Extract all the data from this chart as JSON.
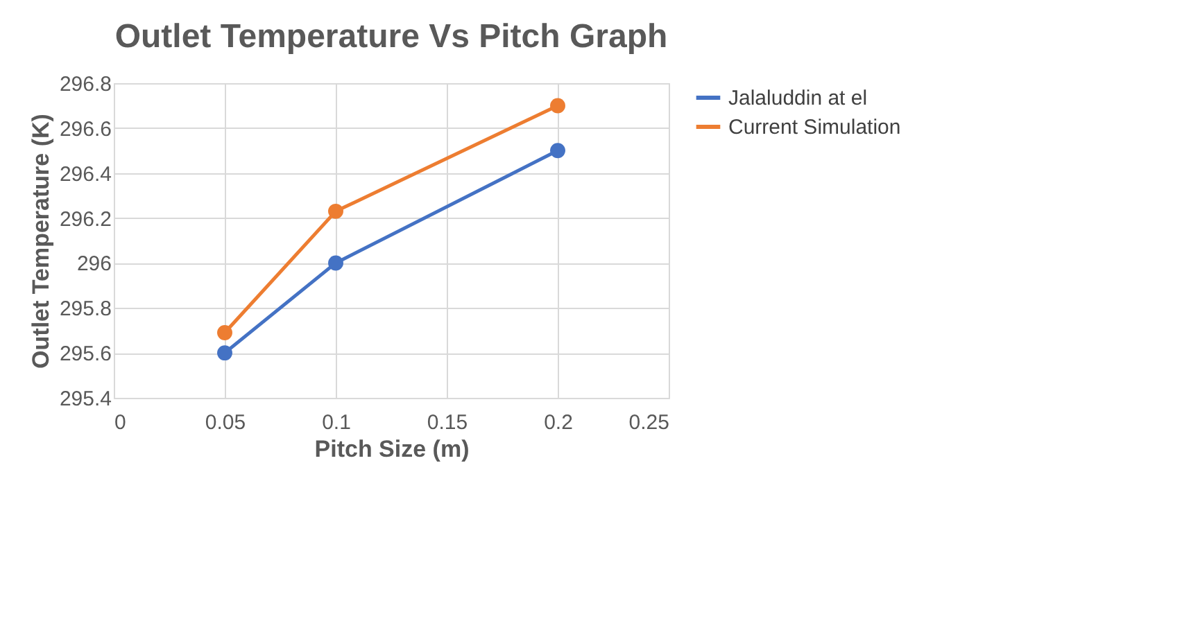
{
  "chart_data": {
    "type": "line",
    "title": "Outlet Temperature Vs Pitch Graph",
    "xlabel": "Pitch Size (m)",
    "ylabel": "Outlet Temperature (K)",
    "x": [
      0.05,
      0.1,
      0.2
    ],
    "series": [
      {
        "name": "Jalaluddin at el",
        "color": "#4472c4",
        "values": [
          295.6,
          296.0,
          296.5
        ]
      },
      {
        "name": "Current Simulation",
        "color": "#ed7d31",
        "values": [
          295.69,
          296.23,
          296.7
        ]
      }
    ],
    "xlim": [
      0,
      0.25
    ],
    "xticks": [
      0,
      0.05,
      0.1,
      0.15,
      0.2,
      0.25
    ],
    "ylim": [
      295.4,
      296.8
    ],
    "yticks": [
      295.4,
      295.6,
      295.8,
      296,
      296.2,
      296.4,
      296.6,
      296.8
    ],
    "grid": true,
    "legend": "right",
    "marker": "circle",
    "line_style": "solid"
  }
}
